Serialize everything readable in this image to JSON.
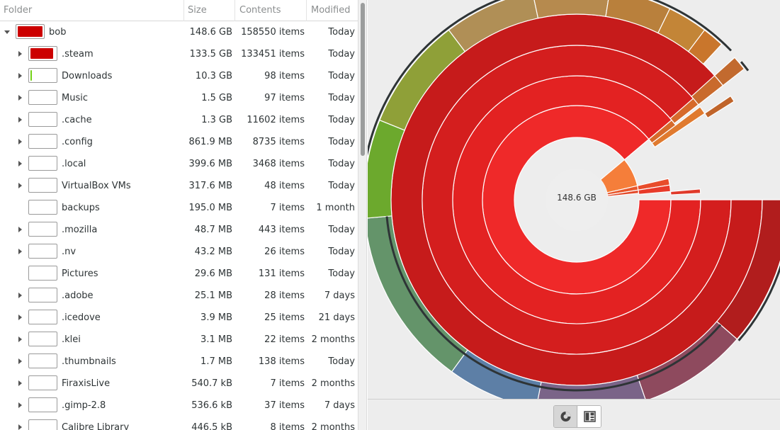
{
  "columns": {
    "folder": "Folder",
    "size": "Size",
    "contents": "Contents",
    "modified": "Modified"
  },
  "rows": [
    {
      "name": "bob",
      "size": "148.6 GB",
      "contents": "158550 items",
      "modified": "Today",
      "fraction": 1.0,
      "bar_color": "#cc0000",
      "expander": "expanded",
      "level": 0
    },
    {
      "name": ".steam",
      "size": "133.5 GB",
      "contents": "133451 items",
      "modified": "Today",
      "fraction": 0.9,
      "bar_color": "#cc0000",
      "expander": "collapsed",
      "level": 1
    },
    {
      "name": "Downloads",
      "size": "10.3 GB",
      "contents": "98 items",
      "modified": "Today",
      "fraction": 0.07,
      "bar_color": "#73d216",
      "expander": "collapsed",
      "level": 1
    },
    {
      "name": "Music",
      "size": "1.5 GB",
      "contents": "97 items",
      "modified": "Today",
      "fraction": 0,
      "bar_color": "#cc0000",
      "expander": "collapsed",
      "level": 1
    },
    {
      "name": ".cache",
      "size": "1.3 GB",
      "contents": "11602 items",
      "modified": "Today",
      "fraction": 0,
      "bar_color": "#cc0000",
      "expander": "collapsed",
      "level": 1
    },
    {
      "name": ".config",
      "size": "861.9 MB",
      "contents": "8735 items",
      "modified": "Today",
      "fraction": 0,
      "bar_color": "#cc0000",
      "expander": "collapsed",
      "level": 1
    },
    {
      "name": ".local",
      "size": "399.6 MB",
      "contents": "3468 items",
      "modified": "Today",
      "fraction": 0,
      "bar_color": "#cc0000",
      "expander": "collapsed",
      "level": 1
    },
    {
      "name": "VirtualBox VMs",
      "size": "317.6 MB",
      "contents": "48 items",
      "modified": "Today",
      "fraction": 0,
      "bar_color": "#cc0000",
      "expander": "collapsed",
      "level": 1
    },
    {
      "name": "backups",
      "size": "195.0 MB",
      "contents": "7 items",
      "modified": "1 month",
      "fraction": 0,
      "bar_color": "#cc0000",
      "expander": "none",
      "level": 1
    },
    {
      "name": ".mozilla",
      "size": "48.7 MB",
      "contents": "443 items",
      "modified": "Today",
      "fraction": 0,
      "bar_color": "#cc0000",
      "expander": "collapsed",
      "level": 1
    },
    {
      "name": ".nv",
      "size": "43.2 MB",
      "contents": "26 items",
      "modified": "Today",
      "fraction": 0,
      "bar_color": "#cc0000",
      "expander": "collapsed",
      "level": 1
    },
    {
      "name": "Pictures",
      "size": "29.6 MB",
      "contents": "131 items",
      "modified": "Today",
      "fraction": 0,
      "bar_color": "#cc0000",
      "expander": "none",
      "level": 1
    },
    {
      "name": ".adobe",
      "size": "25.1 MB",
      "contents": "28 items",
      "modified": "7 days",
      "fraction": 0,
      "bar_color": "#cc0000",
      "expander": "collapsed",
      "level": 1
    },
    {
      "name": ".icedove",
      "size": "3.9 MB",
      "contents": "25 items",
      "modified": "21 days",
      "fraction": 0,
      "bar_color": "#cc0000",
      "expander": "collapsed",
      "level": 1
    },
    {
      "name": ".klei",
      "size": "3.1 MB",
      "contents": "22 items",
      "modified": "2 months",
      "fraction": 0,
      "bar_color": "#cc0000",
      "expander": "collapsed",
      "level": 1
    },
    {
      "name": ".thumbnails",
      "size": "1.7 MB",
      "contents": "138 items",
      "modified": "Today",
      "fraction": 0,
      "bar_color": "#cc0000",
      "expander": "collapsed",
      "level": 1
    },
    {
      "name": "FiraxisLive",
      "size": "540.7 kB",
      "contents": "7 items",
      "modified": "2 months",
      "fraction": 0,
      "bar_color": "#cc0000",
      "expander": "collapsed",
      "level": 1
    },
    {
      "name": ".gimp-2.8",
      "size": "536.6 kB",
      "contents": "37 items",
      "modified": "7 days",
      "fraction": 0,
      "bar_color": "#cc0000",
      "expander": "collapsed",
      "level": 1
    },
    {
      "name": "Calibre Library",
      "size": "446.5 kB",
      "contents": "8 items",
      "modified": "2 months",
      "fraction": 0,
      "bar_color": "#cc0000",
      "expander": "collapsed",
      "level": 1
    }
  ],
  "chart": {
    "center_label": "148.6 GB",
    "root_color": "#ef2929"
  },
  "view_buttons": [
    {
      "name": "rings-chart-view",
      "icon": "rings-chart-icon",
      "active": true
    },
    {
      "name": "treemap-chart-view",
      "icon": "treemap-chart-icon",
      "active": false
    }
  ]
}
